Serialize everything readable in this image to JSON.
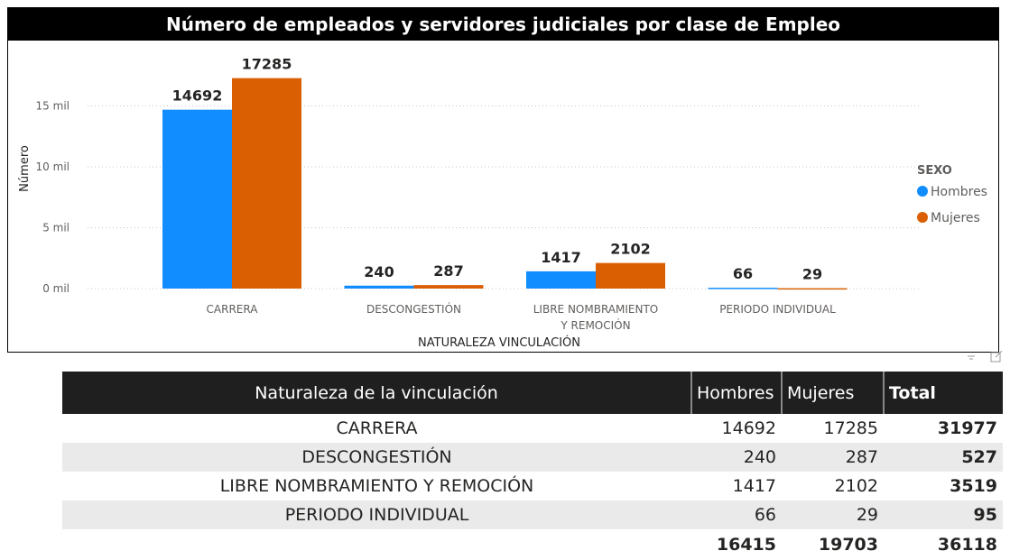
{
  "chart_data": {
    "type": "bar",
    "title": "Número de empleados y servidores judiciales por clase de Empleo",
    "categories": [
      "CARRERA",
      "DESCONGESTIÓN",
      "LIBRE NOMBRAMIENTO Y REMOCIÓN",
      "PERIODO INDIVIDUAL"
    ],
    "series": [
      {
        "name": "Hombres",
        "color": "#118DFF",
        "values": [
          14692,
          240,
          1417,
          66
        ]
      },
      {
        "name": "Mujeres",
        "color": "#D95F02",
        "values": [
          17285,
          287,
          2102,
          29
        ]
      }
    ],
    "xlabel": "NATURALEZA VINCULACIÓN",
    "ylabel": "Número",
    "ylim": [
      0,
      18000
    ],
    "yticks": [
      0,
      5000,
      10000,
      15000
    ],
    "ytick_labels": [
      "0 mil",
      "5 mil",
      "10 mil",
      "15 mil"
    ],
    "legend": {
      "title": "SEXO",
      "position": "right"
    },
    "grid": true
  },
  "table": {
    "headers": [
      "Naturaleza de la vinculación",
      "Hombres",
      "Mujeres",
      "Total"
    ],
    "rows": [
      {
        "name": "CARRERA",
        "hombres": "14692",
        "mujeres": "17285",
        "total": "31977"
      },
      {
        "name": "DESCONGESTIÓN",
        "hombres": "240",
        "mujeres": "287",
        "total": "527"
      },
      {
        "name": "LIBRE NOMBRAMIENTO Y REMOCIÓN",
        "hombres": "1417",
        "mujeres": "2102",
        "total": "3519"
      },
      {
        "name": "PERIODO INDIVIDUAL",
        "hombres": "66",
        "mujeres": "29",
        "total": "95"
      }
    ],
    "totals": {
      "hombres": "16415",
      "mujeres": "19703",
      "total": "36118"
    }
  },
  "icons": {
    "filter": "filter-icon",
    "focus": "focus-mode-icon"
  }
}
